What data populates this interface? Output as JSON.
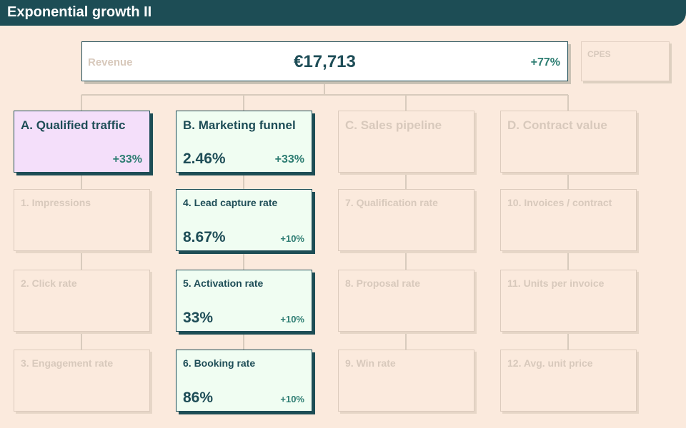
{
  "header": {
    "title": "Exponential growth II"
  },
  "revenue": {
    "label": "Revenue",
    "value": "€17,713",
    "change": "+77%"
  },
  "cpes": {
    "label": "CPES"
  },
  "columns": [
    {
      "head": {
        "label": "A. Qualified traffic",
        "value": "",
        "change": "+33%"
      },
      "items": [
        {
          "label": "1. Impressions",
          "value": "",
          "change": ""
        },
        {
          "label": "2. Click rate",
          "value": "",
          "change": ""
        },
        {
          "label": "3. Engagement rate",
          "value": "",
          "change": ""
        }
      ]
    },
    {
      "head": {
        "label": "B. Marketing funnel",
        "value": "2.46%",
        "change": "+33%"
      },
      "items": [
        {
          "label": "4. Lead capture rate",
          "value": "8.67%",
          "change": "+10%"
        },
        {
          "label": "5. Activation rate",
          "value": "33%",
          "change": "+10%"
        },
        {
          "label": "6. Booking rate",
          "value": "86%",
          "change": "+10%"
        }
      ]
    },
    {
      "head": {
        "label": "C. Sales pipeline",
        "value": "",
        "change": ""
      },
      "items": [
        {
          "label": "7. Qualification rate",
          "value": "",
          "change": ""
        },
        {
          "label": "8. Proposal rate",
          "value": "",
          "change": ""
        },
        {
          "label": "9. Win rate",
          "value": "",
          "change": ""
        }
      ]
    },
    {
      "head": {
        "label": "D. Contract value",
        "value": "",
        "change": ""
      },
      "items": [
        {
          "label": "10. Invoices / contract",
          "value": "",
          "change": ""
        },
        {
          "label": "11. Units per invoice",
          "value": "",
          "change": ""
        },
        {
          "label": "12. Avg. unit price",
          "value": "",
          "change": ""
        }
      ]
    }
  ],
  "colors": {
    "header": "#1d4d55",
    "background": "#fbeadd",
    "active_green": "#f0fdf2",
    "active_purple": "#f4dffa",
    "positive": "#2d7d72"
  }
}
